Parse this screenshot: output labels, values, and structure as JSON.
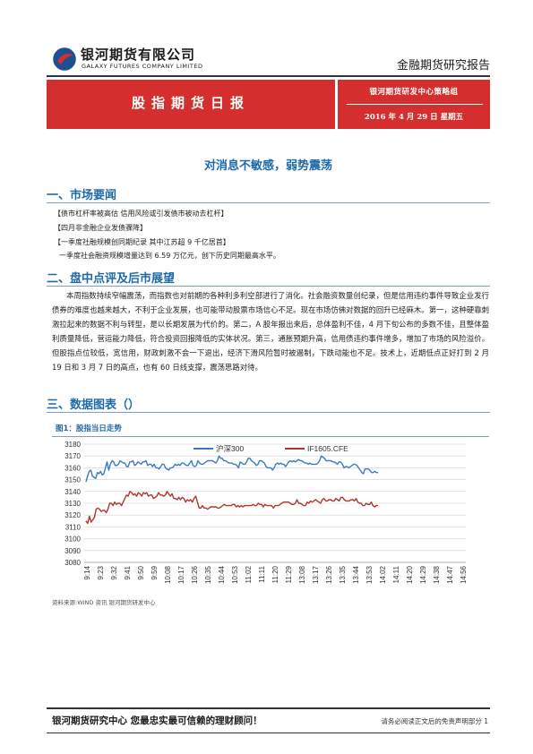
{
  "header": {
    "company_cn": "银河期货有限公司",
    "company_en": "GALAXY FUTURES COMPANY LIMITED",
    "report_type": "金融期货研究报告"
  },
  "banner": {
    "title": "股指期货日报",
    "team": "银河期货研发中心策略组",
    "date": "2016 年 4 月 29 日  星期五"
  },
  "headline": "对消息不敏感，弱势震荡",
  "sections": {
    "s1": "一、市场要闻",
    "s2": "二、盘中点评及后市展望",
    "s3": "三、数据图表（）"
  },
  "news": [
    "【债市杠杆率被高估 信用风险或引发债市被动去杠杆】",
    "【四月非金融企业发债骤降】",
    "【一季度社融规模创同期纪录 其中江苏超 9 千亿居首】",
    "一季度社会融资规模增量达到 6.59 万亿元，创下历史同期最高水平。"
  ],
  "body_text": "本周指数持续窄幅震荡，而指数也对前期的各种利多利空部进行了消化。社会融资数量创纪录，但是信用违约事件导致企业发行债券的难度也越来越大，不利于企业发展，也可能带动股票市场信心不足。现在市场仿佛对数据的回升已经麻木。第一，这种硬靠刺激拉起来的数据不利与转型，是以长期发展为代价的。第二，A 股年报出来后，总体盈利不佳，4 月下旬公布的多数不佳，且整体盈利质量降低，营运能力降低，符合投资回报降低的实体状况。第三，通胀预期升高，信用债违约事件增多，增加了市场的风险溢价。但股指点位较低，宽信用，财政刺激不会一下退出，经济下滑风险暂时被遏制，下跌动能也不足。技术上，近期低点正好打到 2 月 19 日和 3 月 7 日的高点，也有 60 日线支撑，震荡思路对待。",
  "figure": {
    "caption": "图1：股指当日走势",
    "source": "资料来源:WIND 资讯   银河期货研发中心"
  },
  "chart_data": {
    "type": "line",
    "ylim": [
      3080,
      3180
    ],
    "yticks": [
      3080,
      3090,
      3100,
      3110,
      3120,
      3130,
      3140,
      3150,
      3160,
      3170,
      3180
    ],
    "grid": true,
    "legend_position": "top",
    "x_ticks": [
      "9:14",
      "9:23",
      "9:32",
      "9:41",
      "9:50",
      "9:59",
      "10:08",
      "10:17",
      "10:26",
      "10:35",
      "10:44",
      "10:53",
      "11:02",
      "11:11",
      "11:20",
      "11:29",
      "13:08",
      "13:17",
      "13:26",
      "13:35",
      "13:44",
      "13:53",
      "14:02",
      "14:11",
      "14:20",
      "14:29",
      "14:38",
      "14:47",
      "14:56"
    ],
    "series": [
      {
        "name": "沪深300",
        "color": "#3e79c4",
        "values": [
          3148,
          3153,
          3157,
          3158,
          3153,
          3152,
          3151,
          3156,
          3155,
          3157,
          3154,
          3155,
          3160,
          3165,
          3158,
          3163,
          3166,
          3165,
          3162,
          3162,
          3163,
          3166,
          3165,
          3164,
          3164,
          3161,
          3161,
          3165,
          3165,
          3166,
          3162,
          3163,
          3165,
          3164,
          3163,
          3165,
          3165,
          3166,
          3162,
          3163,
          3163,
          3161,
          3163,
          3160,
          3160,
          3159,
          3161,
          3163,
          3163,
          3160,
          3159,
          3158,
          3160,
          3160,
          3161,
          3163,
          3162,
          3163,
          3162,
          3164,
          3164,
          3163,
          3162,
          3162,
          3164,
          3166,
          3162,
          3161,
          3162,
          3166,
          3164,
          3163,
          3163,
          3164,
          3165,
          3166,
          3166,
          3166,
          3166,
          3165,
          3164,
          3166,
          3170,
          3168,
          3168,
          3166,
          3166,
          3165,
          3164,
          3164,
          3164,
          3163,
          3163,
          3162,
          3160,
          3165,
          3164,
          3163,
          3163,
          3165,
          3168,
          3168,
          3166,
          3165,
          3164,
          3162,
          3163,
          3166,
          3166,
          3165,
          3164,
          3161,
          3160,
          3160,
          3160,
          3158,
          3160,
          3163,
          3164,
          3163,
          3164,
          3163,
          3163,
          3161,
          3163,
          3165,
          3166,
          3165,
          3166,
          3165,
          3166,
          3167,
          3166,
          3166,
          3165,
          3164,
          3164,
          3163,
          3164,
          3163,
          3163,
          3163,
          3163,
          3164,
          3166,
          3170,
          3169,
          3168,
          3166,
          3166,
          3166,
          3166,
          3165,
          3165,
          3164,
          3163,
          3165,
          3165,
          3163,
          3160,
          3161,
          3161,
          3160,
          3161,
          3162,
          3163,
          3163,
          3162,
          3160,
          3158,
          3156,
          3155,
          3159,
          3159,
          3159,
          3158,
          3156,
          3156,
          3157,
          3156,
          3156
        ]
      },
      {
        "name": "IF1605.CFE",
        "color": "#b0362c",
        "values": [
          3115,
          3113,
          3119,
          3114,
          3116,
          3118,
          3125,
          3126,
          3125,
          3123,
          3124,
          3124,
          3122,
          3125,
          3130,
          3130,
          3128,
          3131,
          3129,
          3130,
          3130,
          3128,
          3131,
          3134,
          3137,
          3136,
          3140,
          3139,
          3137,
          3138,
          3136,
          3139,
          3138,
          3136,
          3139,
          3138,
          3139,
          3136,
          3137,
          3137,
          3134,
          3135,
          3136,
          3139,
          3137,
          3137,
          3136,
          3137,
          3140,
          3138,
          3136,
          3138,
          3134,
          3134,
          3133,
          3135,
          3133,
          3135,
          3134,
          3131,
          3133,
          3132,
          3133,
          3131,
          3134,
          3136,
          3131,
          3126,
          3126,
          3128,
          3126,
          3126,
          3125,
          3126,
          3127,
          3127,
          3127,
          3127,
          3126,
          3126,
          3127,
          3128,
          3129,
          3128,
          3128,
          3128,
          3128,
          3129,
          3129,
          3127,
          3128,
          3127,
          3128,
          3127,
          3128,
          3128,
          3128,
          3128,
          3128,
          3129,
          3128,
          3128,
          3130,
          3129,
          3129,
          3127,
          3129,
          3128,
          3128,
          3128,
          3128,
          3126,
          3128,
          3128,
          3128,
          3129,
          3130,
          3131,
          3131,
          3131,
          3131,
          3130,
          3129,
          3129,
          3130,
          3133,
          3130,
          3130,
          3129,
          3128,
          3128,
          3131,
          3130,
          3132,
          3131,
          3132,
          3133,
          3132,
          3131,
          3130,
          3133,
          3134,
          3132,
          3132,
          3133,
          3133,
          3132,
          3132,
          3134,
          3133,
          3132,
          3135,
          3135,
          3133,
          3132,
          3132,
          3132,
          3133,
          3133,
          3132,
          3134,
          3131,
          3130,
          3130,
          3128,
          3128,
          3130,
          3129,
          3129,
          3131,
          3128,
          3127,
          3128,
          3128
        ]
      }
    ]
  },
  "footer": {
    "slogan": "银河期货研究中心  您最忠实最可信赖的理财顾问！",
    "disclaimer": "请务必阅读正文后的免责声明部分 1"
  }
}
